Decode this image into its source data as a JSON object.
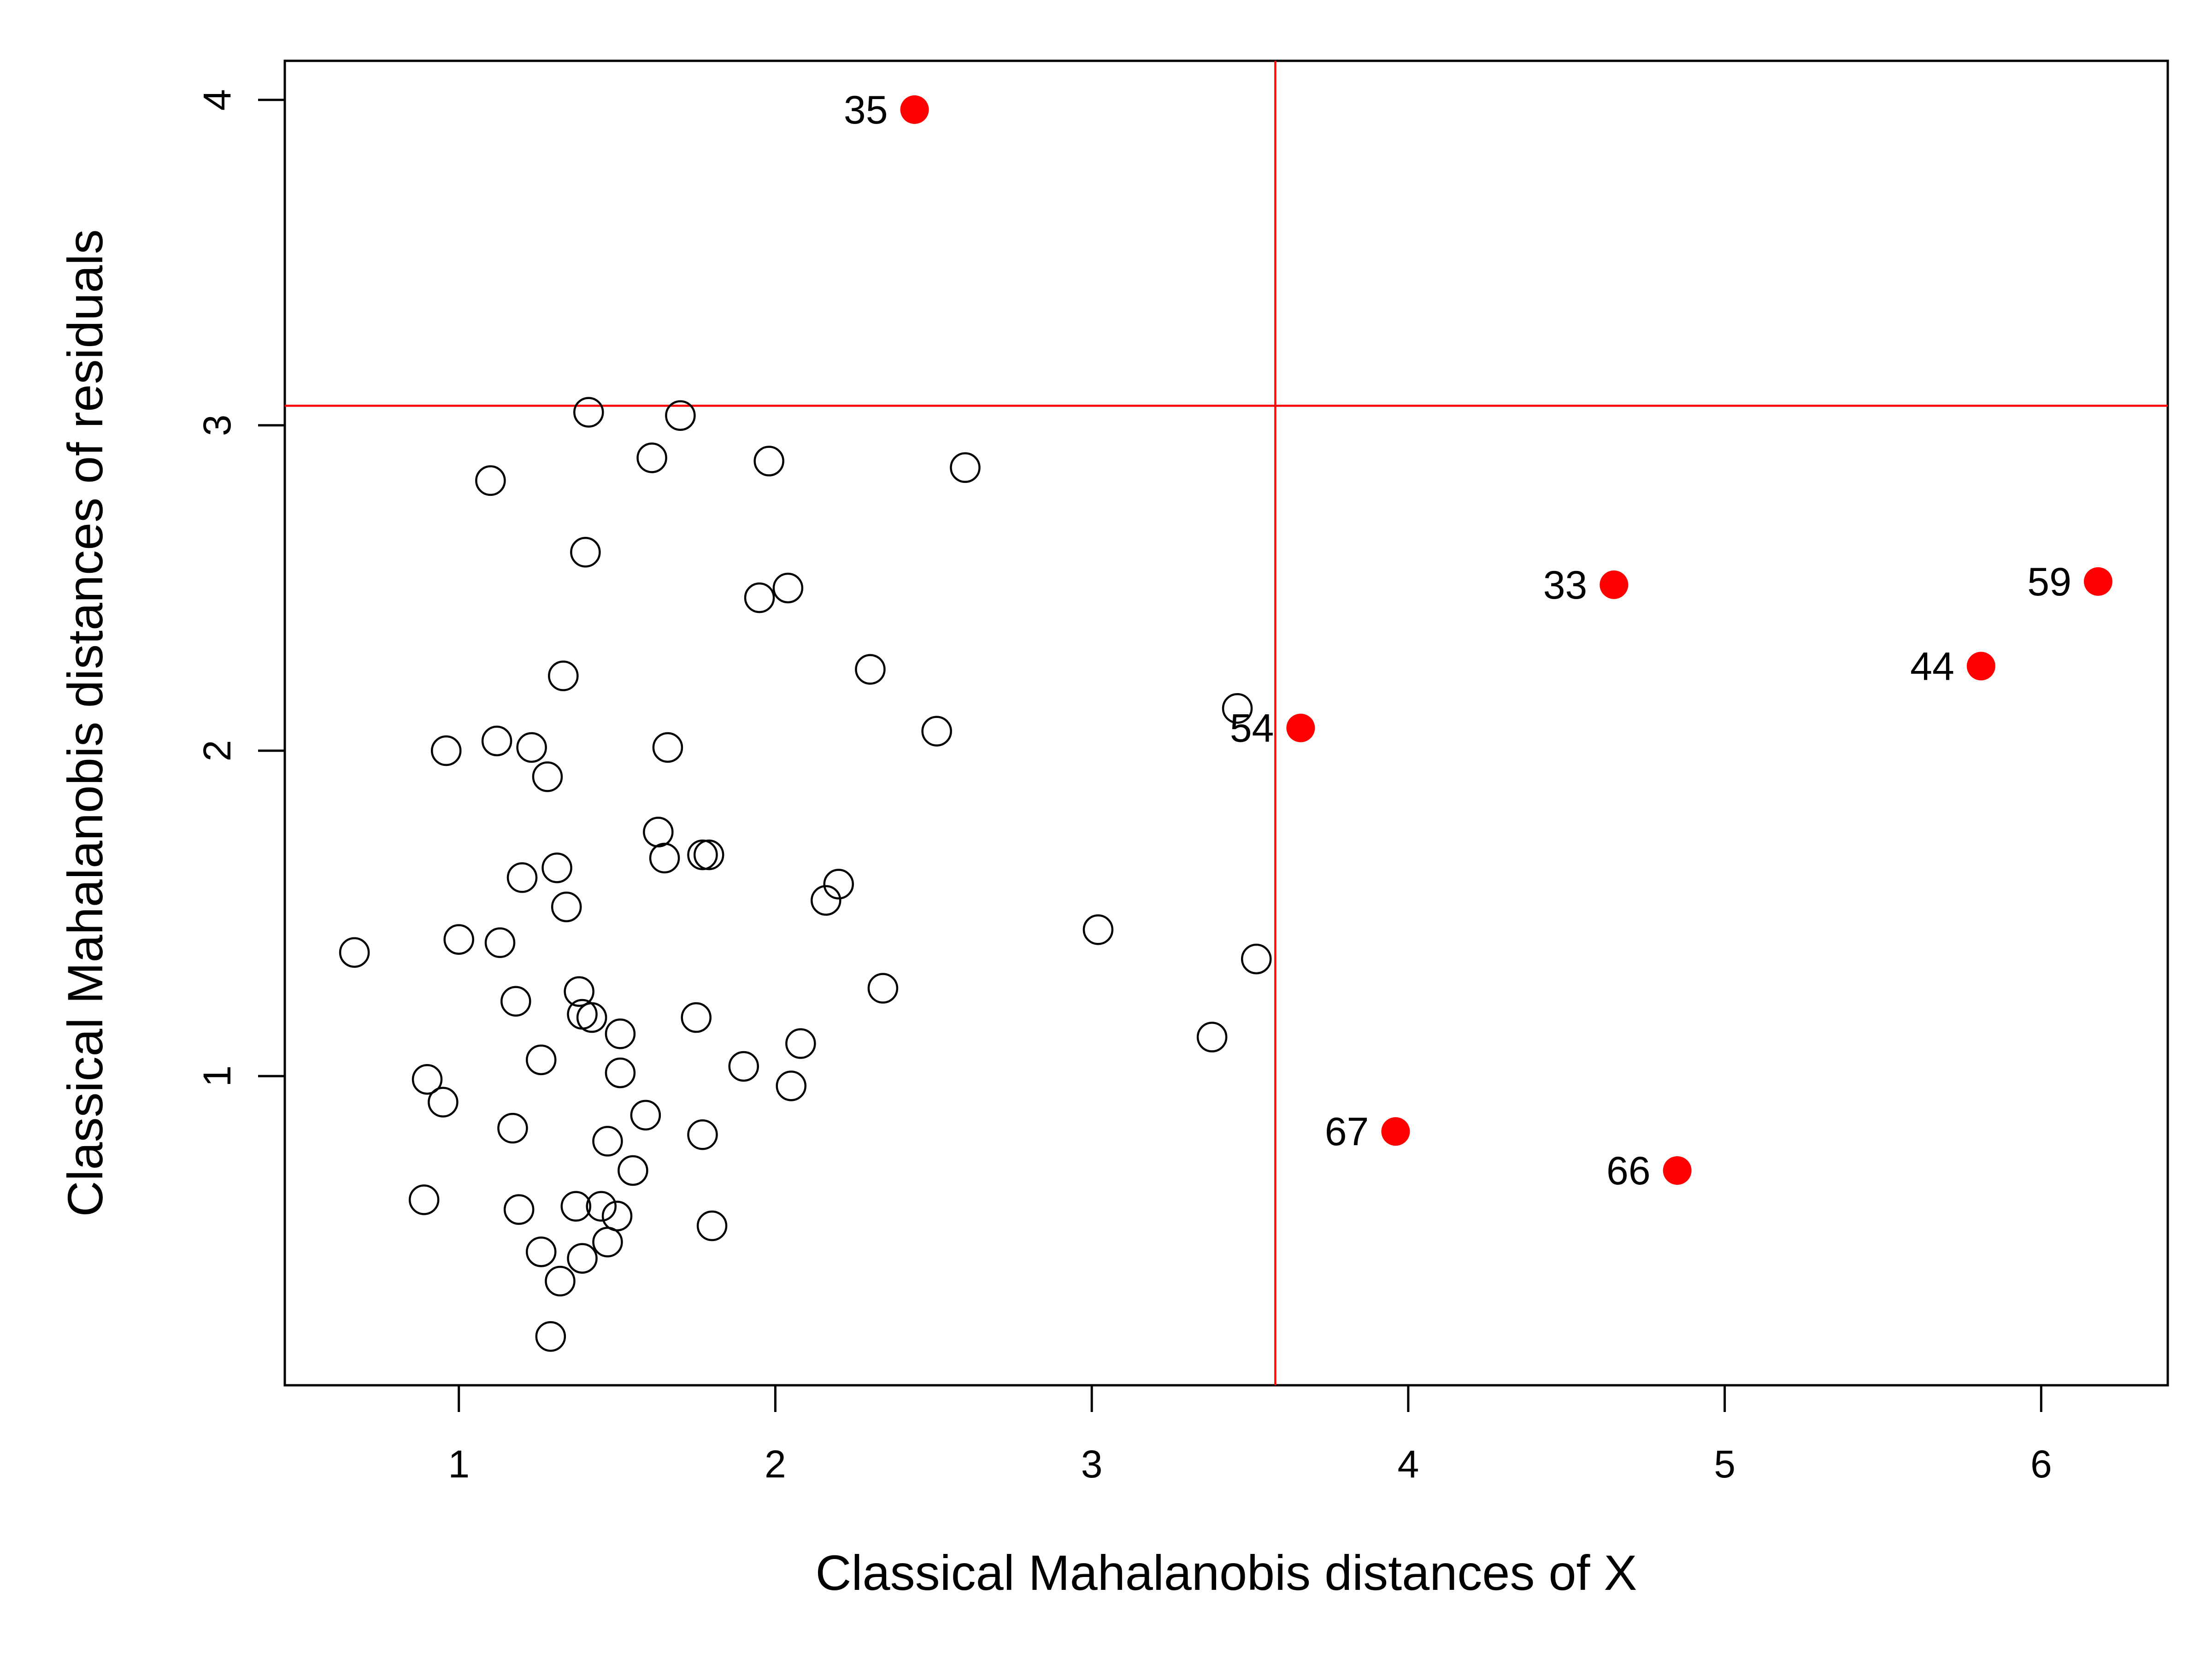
{
  "chart_data": {
    "type": "scatter",
    "xlabel": "Classical Mahalanobis distances of X",
    "ylabel": "Classical Mahalanobis distances of residuals",
    "xlim": [
      0.45,
      6.4
    ],
    "ylim": [
      0.05,
      4.12
    ],
    "x_ticks": [
      1,
      2,
      3,
      4,
      5,
      6
    ],
    "y_ticks": [
      1,
      2,
      3,
      4
    ],
    "grid": false,
    "cutoffs": {
      "x": 3.58,
      "y": 3.06,
      "color": "#ff0000"
    },
    "colors": {
      "regular": "#000000",
      "outlier": "#ff0000"
    },
    "regular_points": [
      [
        0.67,
        1.38
      ],
      [
        0.9,
        0.99
      ],
      [
        0.89,
        0.62
      ],
      [
        0.95,
        0.92
      ],
      [
        0.96,
        2.0
      ],
      [
        1.0,
        1.42
      ],
      [
        1.1,
        2.83
      ],
      [
        1.12,
        2.03
      ],
      [
        1.13,
        1.41
      ],
      [
        1.17,
        0.84
      ],
      [
        1.18,
        1.23
      ],
      [
        1.19,
        0.59
      ],
      [
        1.2,
        1.61
      ],
      [
        1.23,
        2.01
      ],
      [
        1.26,
        1.05
      ],
      [
        1.26,
        0.46
      ],
      [
        1.28,
        1.92
      ],
      [
        1.29,
        0.2
      ],
      [
        1.31,
        1.64
      ],
      [
        1.32,
        0.37
      ],
      [
        1.33,
        2.23
      ],
      [
        1.34,
        1.52
      ],
      [
        1.37,
        0.6
      ],
      [
        1.38,
        1.26
      ],
      [
        1.39,
        1.19
      ],
      [
        1.4,
        2.61
      ],
      [
        1.39,
        0.44
      ],
      [
        1.41,
        3.04
      ],
      [
        1.42,
        1.18
      ],
      [
        1.45,
        0.6
      ],
      [
        1.47,
        0.8
      ],
      [
        1.47,
        0.49
      ],
      [
        1.5,
        0.57
      ],
      [
        1.51,
        1.13
      ],
      [
        1.51,
        1.01
      ],
      [
        1.55,
        0.71
      ],
      [
        1.59,
        0.88
      ],
      [
        1.61,
        2.9
      ],
      [
        1.63,
        1.75
      ],
      [
        1.65,
        1.67
      ],
      [
        1.66,
        2.01
      ],
      [
        1.7,
        3.03
      ],
      [
        1.75,
        1.18
      ],
      [
        1.77,
        1.68
      ],
      [
        1.77,
        0.82
      ],
      [
        1.79,
        1.68
      ],
      [
        1.8,
        0.54
      ],
      [
        1.9,
        1.03
      ],
      [
        1.95,
        2.47
      ],
      [
        1.98,
        2.89
      ],
      [
        2.04,
        2.5
      ],
      [
        2.05,
        0.97
      ],
      [
        2.08,
        1.1
      ],
      [
        2.16,
        1.54
      ],
      [
        2.2,
        1.59
      ],
      [
        2.3,
        2.25
      ],
      [
        2.34,
        1.27
      ],
      [
        2.51,
        2.06
      ],
      [
        2.6,
        2.87
      ],
      [
        3.02,
        1.45
      ],
      [
        3.38,
        1.12
      ],
      [
        3.46,
        2.13
      ],
      [
        3.52,
        1.36
      ]
    ],
    "outliers": [
      {
        "label": "35",
        "x": 2.44,
        "y": 3.97
      },
      {
        "label": "33",
        "x": 4.65,
        "y": 2.51
      },
      {
        "label": "59",
        "x": 6.18,
        "y": 2.52
      },
      {
        "label": "44",
        "x": 5.81,
        "y": 2.26
      },
      {
        "label": "54",
        "x": 3.66,
        "y": 2.07
      },
      {
        "label": "67",
        "x": 3.96,
        "y": 0.83
      },
      {
        "label": "66",
        "x": 4.85,
        "y": 0.71
      }
    ]
  }
}
